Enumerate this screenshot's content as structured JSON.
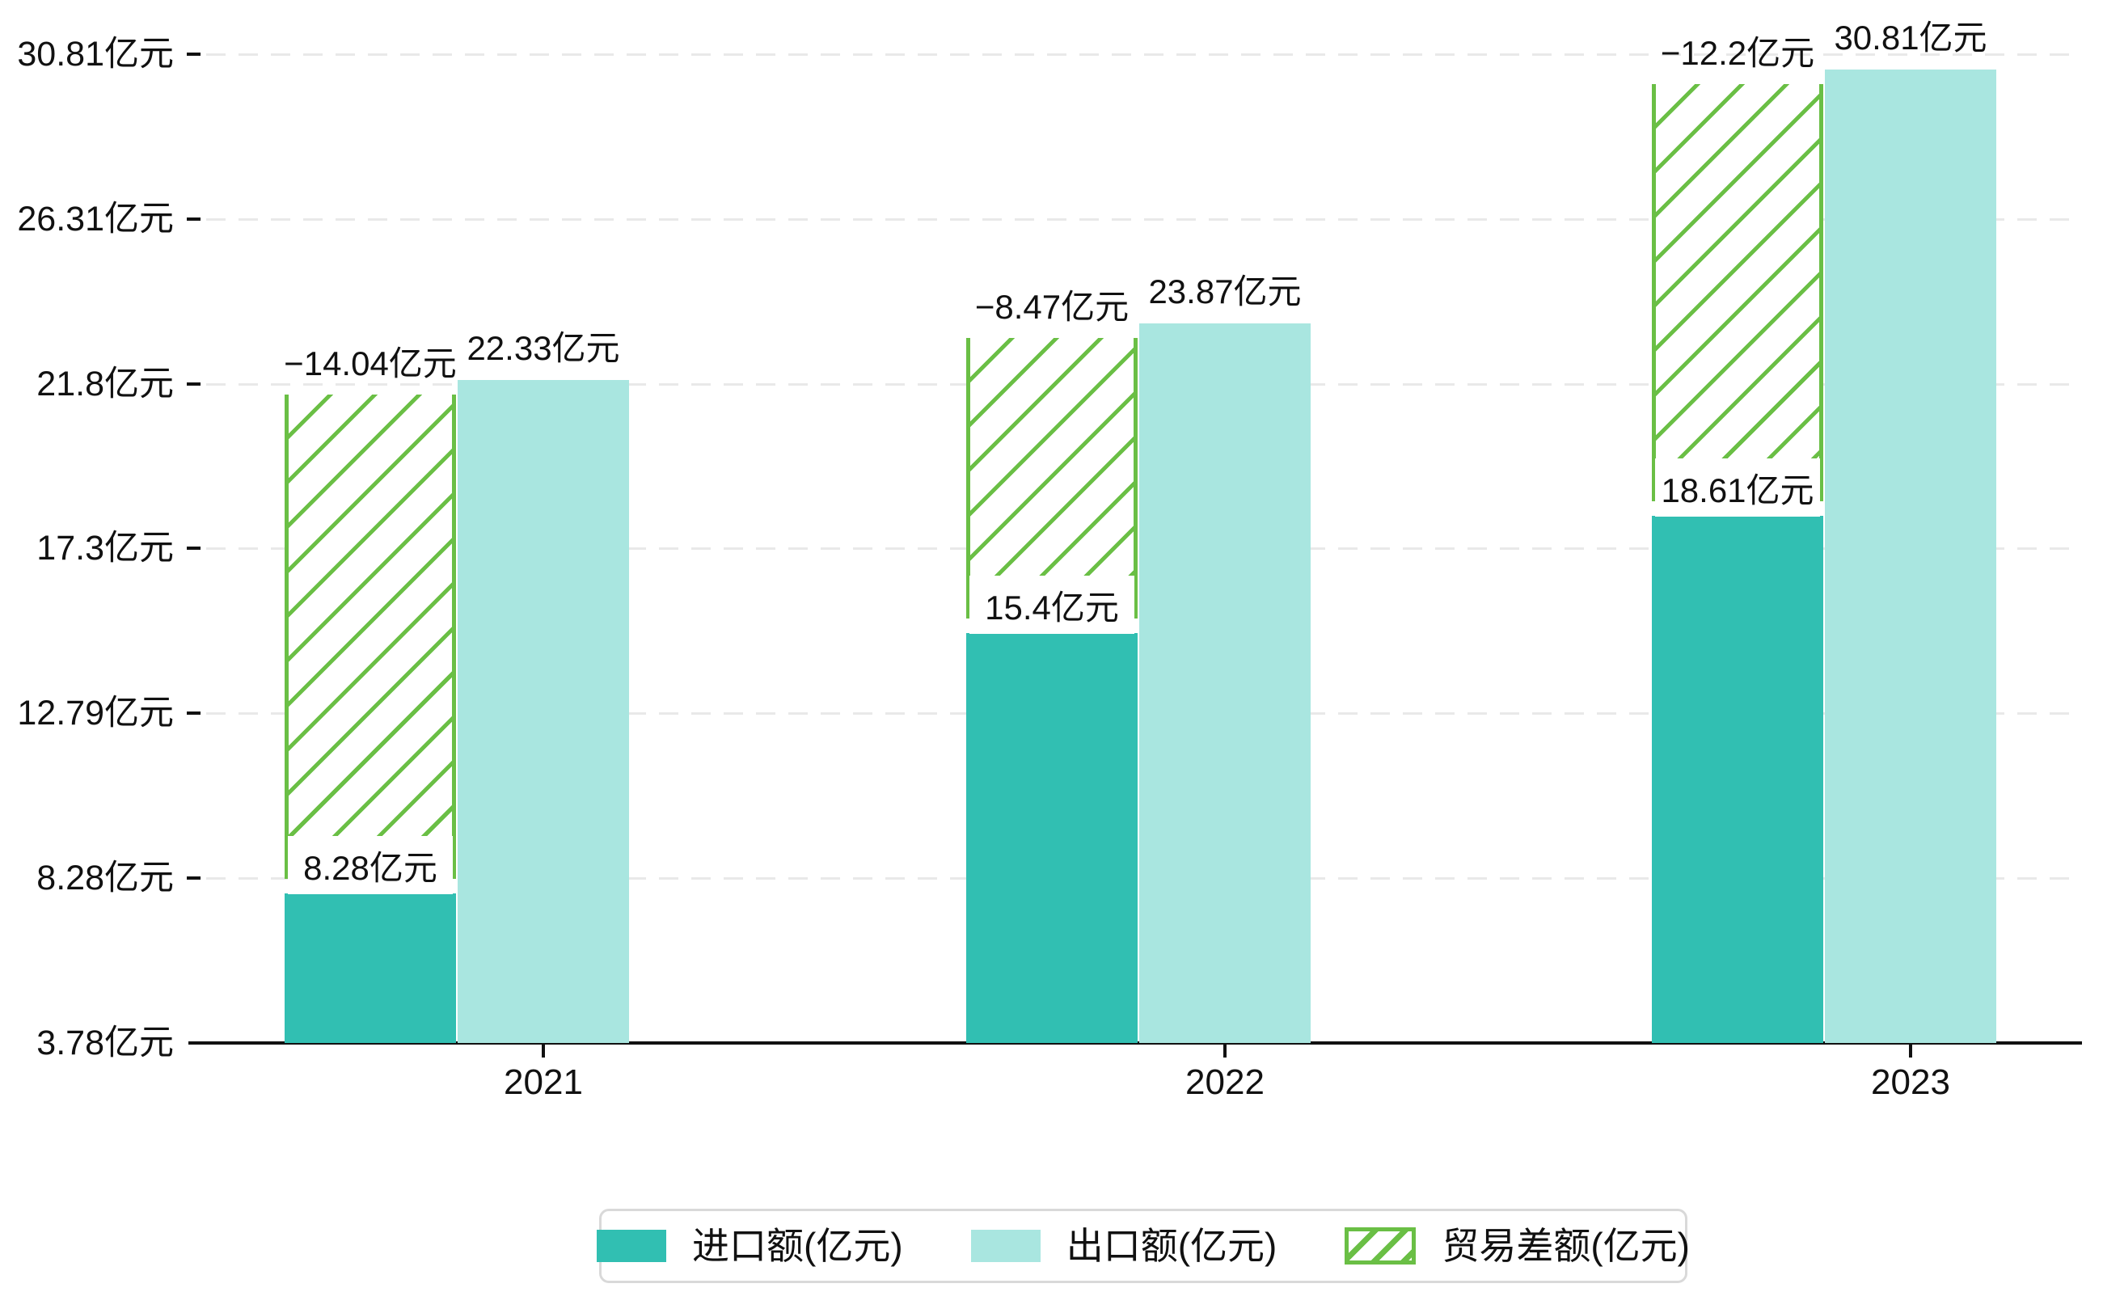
{
  "chart_data": {
    "type": "bar",
    "title": "",
    "categories": [
      "2021",
      "2022",
      "2023"
    ],
    "series": [
      {
        "name": "进口额(亿元)",
        "role": "import",
        "style": "solid",
        "color": "#31bfb2",
        "values": [
          8.28,
          15.4,
          18.61
        ],
        "data_labels": [
          "8.28亿元",
          "15.4亿元",
          "18.61亿元"
        ]
      },
      {
        "name": "出口额(亿元)",
        "role": "export",
        "style": "solid",
        "color": "#a9e6e0",
        "values": [
          22.33,
          23.87,
          30.81
        ],
        "data_labels": [
          "22.33亿元",
          "23.87亿元",
          "30.81亿元"
        ]
      },
      {
        "name": "贸易差额(亿元)",
        "role": "trade-difference",
        "style": "hatched",
        "color": "#6abf45",
        "values": [
          -14.04,
          -8.47,
          -12.2
        ],
        "data_labels": [
          "−14.04亿元",
          "−8.47亿元",
          "−12.2亿元"
        ],
        "note": "hatched bar spans from import bar top to export bar top"
      }
    ],
    "y_axis": {
      "unit": "亿元",
      "min": 3.78,
      "max": 30.81,
      "tick_values": [
        30.81,
        26.31,
        21.8,
        17.3,
        12.79,
        8.28,
        3.78
      ],
      "tick_labels": [
        "30.81亿元",
        "26.31亿元",
        "21.8亿元",
        "17.3亿元",
        "12.79亿元",
        "8.28亿元",
        "3.78亿元"
      ]
    },
    "x_axis": {
      "tick_labels": [
        "2021",
        "2022",
        "2023"
      ]
    },
    "grid": {
      "style": "dashed",
      "direction": "horizontal",
      "color": "#e9e9e9"
    },
    "legend": {
      "position": "bottom-center",
      "entries": [
        "进口额(亿元)",
        "出口额(亿元)",
        "贸易差额(亿元)"
      ]
    }
  },
  "colors": {
    "import_bar": "#31bfb2",
    "export_bar": "#a9e6e0",
    "difference_hatch": "#6abf45",
    "axis": "#111111",
    "gridline": "#e9e9e9",
    "legend_border": "#d9d9d9",
    "text": "#111111",
    "background": "#ffffff"
  }
}
